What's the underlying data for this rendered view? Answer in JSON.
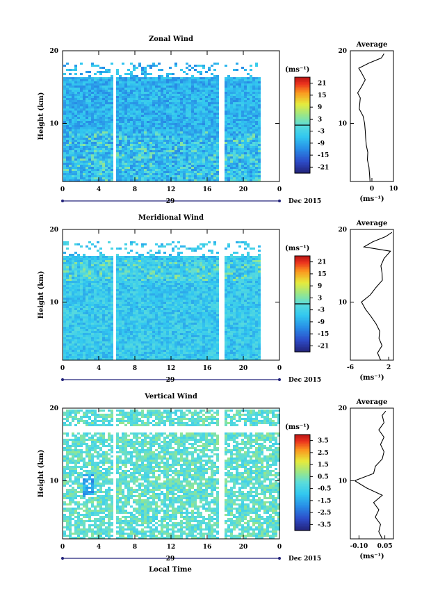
{
  "figure": {
    "xlabel": "Local Time",
    "date_label": "Dec 2015",
    "day_label": "29",
    "unit_label": "(ms⁻¹)"
  },
  "chart_data": [
    {
      "type": "heatmap",
      "title": "Zonal Wind",
      "ylabel": "Height (km)",
      "xlim": [
        0,
        24
      ],
      "ylim": [
        2,
        20
      ],
      "xticks": [
        "0",
        "4",
        "8",
        "12",
        "16",
        "20",
        "0"
      ],
      "yticks": [
        "10",
        "20"
      ],
      "colorbar": {
        "unit": "(ms⁻¹)",
        "range": [
          -24,
          24
        ],
        "ticks": [
          21,
          15,
          9,
          3,
          -3,
          -9,
          -15,
          -21
        ],
        "contour_level": 0
      },
      "background_value": -8,
      "gaps": [
        [
          5.4,
          5.9
        ],
        [
          17.2,
          17.7
        ]
      ],
      "data_end": 21.8,
      "profile": {
        "title": "Average",
        "xlim": [
          -10,
          10
        ],
        "xticks": [
          "0",
          "10"
        ],
        "xlabel": "(ms⁻¹)",
        "heights": [
          2,
          3,
          4,
          5,
          6,
          7,
          8,
          9,
          10,
          11,
          12,
          12.8,
          13.5,
          14.2,
          15,
          16,
          17,
          17.6,
          18.3,
          19,
          19.6
        ],
        "values": [
          -0.5,
          -1.5,
          -1,
          -2.5,
          -1.5,
          -3,
          -2.5,
          -3.5,
          -3,
          -4.5,
          -5.5,
          -6,
          -5,
          -7,
          -4.5,
          -3.5,
          -4.5,
          -6.5,
          -1,
          4,
          6
        ]
      }
    },
    {
      "type": "heatmap",
      "title": "Meridional Wind",
      "ylabel": "Height (km)",
      "xlim": [
        0,
        24
      ],
      "ylim": [
        2,
        20
      ],
      "xticks": [
        "0",
        "4",
        "8",
        "12",
        "16",
        "20",
        "0"
      ],
      "yticks": [
        "10",
        "20"
      ],
      "colorbar": {
        "unit": "(ms⁻¹)",
        "range": [
          -24,
          24
        ],
        "ticks": [
          21,
          15,
          9,
          3,
          -3,
          -9,
          -15,
          -21
        ],
        "contour_level": 0
      },
      "background_value": -5,
      "gaps": [
        [
          5.4,
          5.9
        ],
        [
          17.2,
          17.7
        ]
      ],
      "data_end": 21.8,
      "profile": {
        "title": "Average",
        "xlim": [
          -6,
          3
        ],
        "xticks": [
          "-6",
          "2"
        ],
        "xlabel": "(ms⁻¹)",
        "heights": [
          2,
          3,
          4,
          5,
          6,
          7,
          8,
          9,
          10,
          11,
          12,
          13,
          14,
          15,
          16,
          17,
          17.6,
          18.3,
          19,
          19.6
        ],
        "values": [
          0.5,
          -0.5,
          0.8,
          -0.2,
          0.3,
          -0.8,
          -1.5,
          -3,
          -3.5,
          -2,
          -0.5,
          0.5,
          0.8,
          0.2,
          1.2,
          2.2,
          -3,
          -1.5,
          1.5,
          2.5
        ]
      }
    },
    {
      "type": "heatmap",
      "title": "Vertical Wind",
      "ylabel": "Height (km)",
      "xlim": [
        0,
        24
      ],
      "ylim": [
        2,
        20
      ],
      "xticks": [
        "0",
        "4",
        "8",
        "12",
        "16",
        "20",
        "0"
      ],
      "yticks": [
        "10",
        "20"
      ],
      "colorbar": {
        "unit": "(ms⁻¹)",
        "range": [
          -4,
          4
        ],
        "ticks": [
          3.5,
          2.5,
          1.5,
          0.5,
          -0.5,
          -1.5,
          -2.5,
          -3.5
        ]
      },
      "background_value": 0.1,
      "gaps": [
        [
          5.4,
          5.9
        ],
        [
          17.2,
          17.7
        ]
      ],
      "data_end": 24,
      "profile": {
        "title": "Average",
        "xlim": [
          -0.15,
          0.1
        ],
        "xticks": [
          "-0.10",
          "0.05"
        ],
        "xlabel": "(ms⁻¹)",
        "heights": [
          2,
          3,
          4,
          5,
          6,
          7,
          8,
          9,
          10,
          11,
          12,
          13,
          14,
          15,
          16,
          17,
          18,
          19,
          19.6
        ],
        "values": [
          0.04,
          0.01,
          0.03,
          -0.01,
          0.02,
          -0.02,
          0.04,
          -0.06,
          -0.12,
          -0.02,
          0.0,
          0.03,
          0.05,
          0.02,
          0.05,
          0.01,
          0.05,
          0.03,
          0.06
        ]
      }
    }
  ]
}
